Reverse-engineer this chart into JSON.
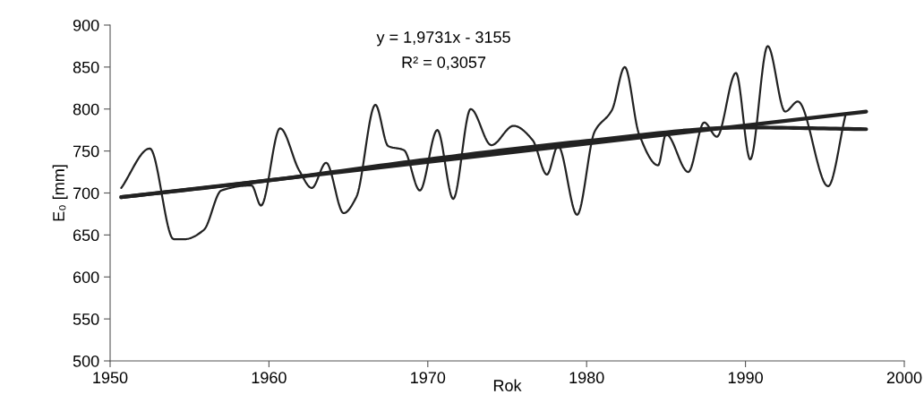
{
  "chart_data": {
    "type": "line",
    "xlabel": "Rok",
    "ylabel": "E₀ [mm]",
    "xlim": [
      1950,
      2000
    ],
    "xticks": [
      1950,
      1960,
      1970,
      1980,
      1990,
      2000
    ],
    "ylim": [
      500,
      900
    ],
    "yticks": [
      500,
      550,
      600,
      650,
      700,
      750,
      800,
      850,
      900
    ],
    "grid": false,
    "legend": false,
    "marker": "none",
    "line_style": "solid",
    "annotations": [
      "y = 1,9731x - 3155",
      "R² = 0,3057"
    ],
    "series": [
      {
        "color": "#222222",
        "x": [
          1950.7,
          1952.5,
          1954.0,
          1954.7,
          1955.9,
          1957.0,
          1958.9,
          1959.5,
          1960.7,
          1961.9,
          1962.7,
          1963.6,
          1964.7,
          1965.5,
          1966.7,
          1967.5,
          1968.5,
          1969.5,
          1970.6,
          1971.6,
          1972.7,
          1974.0,
          1975.4,
          1976.6,
          1977.5,
          1978.2,
          1979.4,
          1980.5,
          1981.6,
          1982.4,
          1983.3,
          1984.5,
          1985.0,
          1986.4,
          1987.4,
          1988.2,
          1989.4,
          1990.3,
          1991.4,
          1992.5,
          1993.3,
          1995.2,
          1996.3
        ],
        "values": [
          706,
          753,
          645,
          645,
          656,
          703,
          709,
          685,
          777,
          727,
          706,
          736,
          676,
          695,
          805,
          756,
          751,
          703,
          775,
          693,
          800,
          757,
          780,
          763,
          722,
          756,
          674,
          773,
          799,
          850,
          770,
          733,
          770,
          725,
          784,
          767,
          843,
          740,
          875,
          797,
          809,
          708,
          793
        ]
      },
      {
        "type": "line",
        "color": "#222222",
        "x": [
          1950.7,
          1997.6
        ],
        "values": [
          695,
          797
        ]
      },
      {
        "type": "line",
        "color": "#222222",
        "x": [
          1950.7,
          1960,
          1970,
          1980,
          1990,
          1997.6
        ],
        "values": [
          695,
          715,
          740,
          762,
          778,
          776
        ]
      }
    ]
  }
}
